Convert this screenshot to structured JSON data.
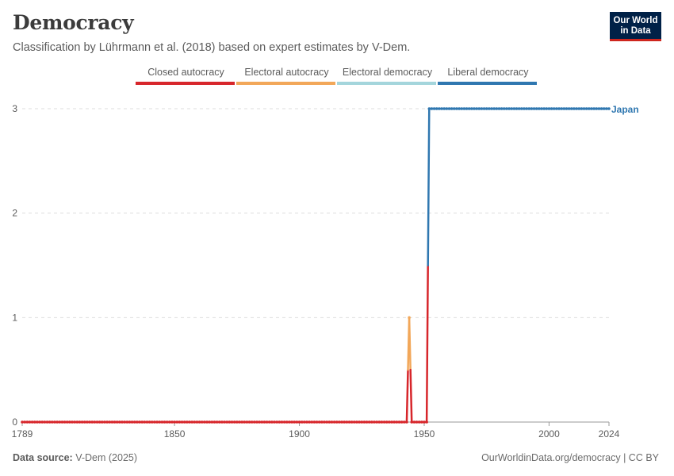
{
  "header": {
    "title": "Democracy",
    "subtitle": "Classification by Lührmann et al. (2018) based on expert estimates by V-Dem."
  },
  "logo": {
    "line1": "Our World",
    "line2": "in Data"
  },
  "footer": {
    "source_label": "Data source:",
    "source_value": "V-Dem (2025)",
    "attribution": "OurWorldinData.org/democracy | CC BY"
  },
  "chart_data": {
    "type": "line",
    "title": "Democracy",
    "subtitle": "Classification by Lührmann et al. (2018) based on expert estimates by V-Dem.",
    "xlim": [
      1789,
      2024
    ],
    "ylim": [
      0,
      3
    ],
    "x_ticks": [
      1789,
      1850,
      1900,
      1950,
      2000,
      2024
    ],
    "y_ticks": [
      0,
      1,
      2,
      3
    ],
    "grid": "horizontal dashed",
    "legend_position": "top",
    "legend": [
      {
        "label": "Closed autocracy",
        "color": "#d7262b"
      },
      {
        "label": "Electoral autocracy",
        "color": "#f2a759"
      },
      {
        "label": "Electoral democracy",
        "color": "#a4d5dc"
      },
      {
        "label": "Liberal democracy",
        "color": "#2f77b0"
      }
    ],
    "series": [
      {
        "name": "Japan",
        "color": "#2f77b0",
        "segments": [
          {
            "from": 1789,
            "to": 1943,
            "value": 0
          },
          {
            "from": 1944,
            "to": 1944,
            "value": 1
          },
          {
            "from": 1945,
            "to": 1951,
            "value": 0
          },
          {
            "from": 1952,
            "to": 2024,
            "value": 3
          }
        ]
      }
    ]
  }
}
